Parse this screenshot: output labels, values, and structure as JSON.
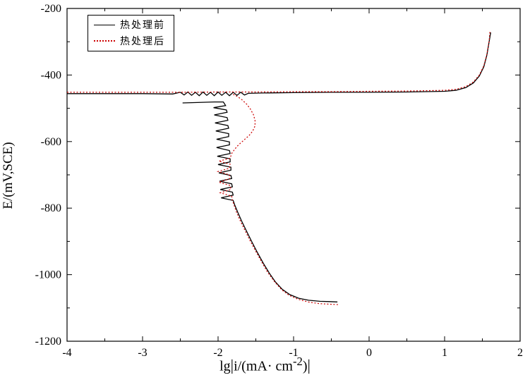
{
  "legend": [
    {
      "label": "热处理前",
      "color": "#000000",
      "style": "solid"
    },
    {
      "label": "热处理后",
      "color": "#cc0000",
      "style": "dotted"
    }
  ],
  "axes": {
    "y_label": "E/(mV,SCE)",
    "x_label_pre": "lg",
    "x_label_bar1": "|",
    "x_label_mid": "i/(mA· cm",
    "x_label_sup": "-2",
    "x_label_close": ")",
    "x_label_bar2": "|"
  },
  "chart_data": {
    "type": "line",
    "title": "",
    "xlabel": "lg|i/(mA·cm^-2)|",
    "ylabel": "E/(mV,SCE)",
    "xlim": [
      -4,
      2
    ],
    "ylim": [
      -1200,
      -200
    ],
    "x_ticks": [
      -4,
      -3,
      -2,
      -1,
      0,
      1,
      2
    ],
    "x_minor_ticks": [
      -3.5,
      -2.5,
      -1.5,
      -0.5,
      0.5,
      1.5
    ],
    "y_ticks": [
      -1200,
      -1000,
      -800,
      -600,
      -400,
      -200
    ],
    "y_minor_ticks": [
      -1100,
      -900,
      -700,
      -500,
      -300
    ],
    "grid": false,
    "legend_position": "top-left",
    "series": [
      {
        "name": "热处理前",
        "color": "#000000",
        "style": "solid",
        "width": 1.3,
        "segments": [
          [
            [
              -4,
              -456
            ],
            [
              -3.5,
              -456
            ],
            [
              -3,
              -456
            ],
            [
              -2.6,
              -457
            ],
            [
              -2.5,
              -452
            ],
            [
              -2.45,
              -460
            ],
            [
              -2.4,
              -451
            ],
            [
              -2.35,
              -461
            ],
            [
              -2.3,
              -452
            ],
            [
              -2.25,
              -462
            ],
            [
              -2.2,
              -451
            ],
            [
              -2.15,
              -461
            ],
            [
              -2.1,
              -452
            ],
            [
              -2.05,
              -462
            ],
            [
              -2.0,
              -451
            ],
            [
              -1.95,
              -461
            ],
            [
              -1.9,
              -452
            ],
            [
              -1.85,
              -462
            ],
            [
              -1.8,
              -452
            ],
            [
              -1.75,
              -461
            ],
            [
              -1.7,
              -452
            ],
            [
              -1.65,
              -460
            ],
            [
              -1.6,
              -455
            ],
            [
              -1.4,
              -454
            ],
            [
              -1.0,
              -453
            ],
            [
              -0.5,
              -452
            ],
            [
              0,
              -452
            ],
            [
              0.5,
              -451
            ],
            [
              1.0,
              -449
            ],
            [
              1.15,
              -446
            ],
            [
              1.28,
              -438
            ],
            [
              1.38,
              -424
            ],
            [
              1.46,
              -403
            ],
            [
              1.52,
              -375
            ],
            [
              1.56,
              -340
            ],
            [
              1.59,
              -300
            ],
            [
              1.61,
              -272
            ]
          ],
          [
            [
              -2.47,
              -484
            ],
            [
              -2.35,
              -483
            ],
            [
              -2.2,
              -482
            ],
            [
              -2.05,
              -481
            ],
            [
              -1.93,
              -481
            ],
            [
              -1.9,
              -492
            ],
            [
              -2.06,
              -498
            ],
            [
              -1.89,
              -505
            ],
            [
              -1.88,
              -512
            ],
            [
              -2.05,
              -520
            ],
            [
              -1.88,
              -528
            ],
            [
              -1.87,
              -536
            ],
            [
              -2.04,
              -544
            ],
            [
              -1.87,
              -552
            ],
            [
              -1.86,
              -560
            ],
            [
              -2.03,
              -568
            ],
            [
              -1.86,
              -576
            ],
            [
              -1.86,
              -585
            ],
            [
              -2.02,
              -593
            ],
            [
              -1.85,
              -601
            ],
            [
              -1.85,
              -610
            ],
            [
              -2.02,
              -618
            ],
            [
              -1.85,
              -627
            ],
            [
              -1.84,
              -636
            ],
            [
              -2.01,
              -644
            ],
            [
              -1.84,
              -652
            ],
            [
              -1.84,
              -661
            ],
            [
              -2.0,
              -669
            ],
            [
              -1.83,
              -677
            ],
            [
              -1.83,
              -686
            ],
            [
              -1.99,
              -694
            ],
            [
              -1.83,
              -702
            ],
            [
              -1.82,
              -711
            ],
            [
              -1.98,
              -719
            ],
            [
              -1.82,
              -727
            ],
            [
              -1.81,
              -736
            ],
            [
              -1.97,
              -744
            ],
            [
              -1.81,
              -752
            ],
            [
              -1.8,
              -761
            ],
            [
              -1.96,
              -769
            ],
            [
              -1.8,
              -777
            ],
            [
              -1.78,
              -790
            ],
            [
              -1.74,
              -812
            ],
            [
              -1.69,
              -838
            ],
            [
              -1.63,
              -866
            ],
            [
              -1.56,
              -898
            ],
            [
              -1.48,
              -933
            ],
            [
              -1.4,
              -966
            ],
            [
              -1.32,
              -996
            ],
            [
              -1.24,
              -1022
            ],
            [
              -1.15,
              -1044
            ],
            [
              -1.05,
              -1060
            ],
            [
              -0.93,
              -1071
            ],
            [
              -0.8,
              -1077
            ],
            [
              -0.65,
              -1080
            ],
            [
              -0.52,
              -1081
            ],
            [
              -0.42,
              -1082
            ]
          ]
        ]
      },
      {
        "name": "热处理后",
        "color": "#cc0000",
        "style": "dotted",
        "width": 1.2,
        "dash": "2 2.5",
        "segments": [
          [
            [
              -4,
              -452
            ],
            [
              -3,
              -452
            ],
            [
              -2.5,
              -452
            ],
            [
              -2,
              -451
            ],
            [
              -1.5,
              -451
            ],
            [
              -1,
              -450
            ],
            [
              -0.5,
              -450
            ],
            [
              0,
              -449
            ],
            [
              0.5,
              -448
            ],
            [
              1.0,
              -446
            ],
            [
              1.15,
              -443
            ],
            [
              1.28,
              -435
            ],
            [
              1.38,
              -421
            ],
            [
              1.46,
              -400
            ],
            [
              1.52,
              -372
            ],
            [
              1.56,
              -338
            ],
            [
              1.59,
              -298
            ],
            [
              1.6,
              -270
            ]
          ],
          [
            [
              -1.8,
              -458
            ],
            [
              -1.74,
              -465
            ],
            [
              -1.68,
              -475
            ],
            [
              -1.62,
              -488
            ],
            [
              -1.57,
              -503
            ],
            [
              -1.53,
              -520
            ],
            [
              -1.51,
              -537
            ],
            [
              -1.51,
              -553
            ],
            [
              -1.54,
              -568
            ],
            [
              -1.59,
              -582
            ],
            [
              -1.66,
              -596
            ],
            [
              -1.73,
              -610
            ],
            [
              -1.78,
              -623
            ],
            [
              -1.82,
              -636
            ],
            [
              -1.84,
              -650
            ],
            [
              -1.99,
              -659
            ],
            [
              -1.84,
              -668
            ],
            [
              -1.85,
              -680
            ],
            [
              -2.0,
              -690
            ],
            [
              -1.85,
              -700
            ],
            [
              -1.85,
              -712
            ],
            [
              -1.99,
              -722
            ],
            [
              -1.84,
              -732
            ],
            [
              -1.83,
              -744
            ],
            [
              -1.97,
              -754
            ],
            [
              -1.82,
              -764
            ],
            [
              -1.81,
              -776
            ],
            [
              -1.79,
              -790
            ],
            [
              -1.76,
              -810
            ],
            [
              -1.71,
              -836
            ],
            [
              -1.65,
              -864
            ],
            [
              -1.58,
              -896
            ],
            [
              -1.5,
              -930
            ],
            [
              -1.42,
              -963
            ],
            [
              -1.34,
              -994
            ],
            [
              -1.25,
              -1022
            ],
            [
              -1.16,
              -1045
            ],
            [
              -1.06,
              -1062
            ],
            [
              -0.94,
              -1074
            ],
            [
              -0.81,
              -1082
            ],
            [
              -0.66,
              -1087
            ],
            [
              -0.5,
              -1089
            ],
            [
              -0.4,
              -1090
            ]
          ]
        ]
      }
    ]
  }
}
